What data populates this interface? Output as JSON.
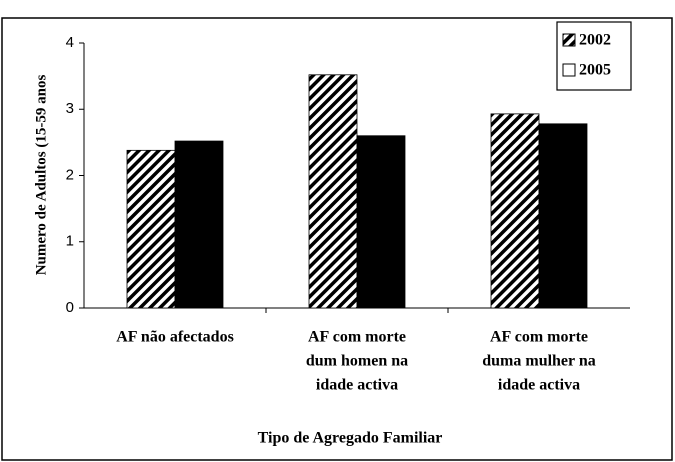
{
  "chart_data": {
    "type": "bar",
    "x_label": "Tipo de Agregado Familiar",
    "y_label": "Numero de Adultos (15-59 anos",
    "categories": [
      [
        "AF não afectados"
      ],
      [
        "AF com morte",
        "dum homen na",
        "idade activa"
      ],
      [
        "AF com morte",
        "duma mulher na",
        "idade activa"
      ]
    ],
    "series": [
      {
        "name": "2002",
        "color": "#000000",
        "pattern": "hatch",
        "legend_color": "#000000",
        "values": [
          2.38,
          3.52,
          2.93
        ]
      },
      {
        "name": "2005",
        "color": "#000000",
        "pattern": "solid",
        "legend_color": "#ffffff",
        "values": [
          2.52,
          2.6,
          2.78
        ]
      }
    ],
    "ylim": [
      0,
      4
    ],
    "yticks": [
      0,
      1,
      2,
      3,
      4
    ],
    "grid": false,
    "legend": "top-right"
  }
}
